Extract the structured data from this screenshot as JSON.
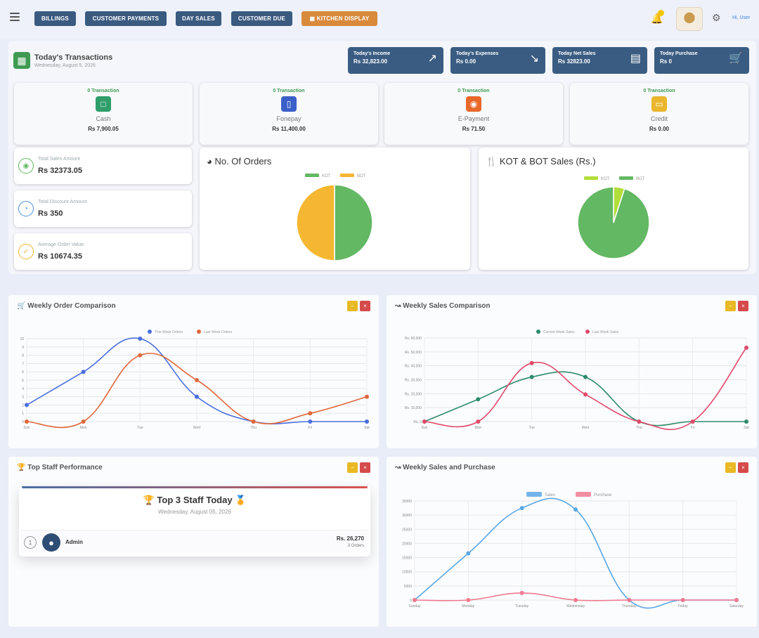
{
  "nav": {
    "buttons": [
      "BILLINGS",
      "CUSTOMER PAYMENTS",
      "DAY SALES",
      "CUSTOMER DUE",
      "KITCHEN DISPLAY"
    ],
    "user_label": "Hi, User"
  },
  "transactions": {
    "title": "Today's Transactions",
    "date": "Wednesday, August 5, 2026"
  },
  "summary_cards": [
    {
      "label": "Today's Income",
      "value": "Rs 32,823.00",
      "icon": "trend-up-icon"
    },
    {
      "label": "Today's Expenses",
      "value": "Rs 0.00",
      "icon": "trend-down-icon"
    },
    {
      "label": "Today Net Sales",
      "value": "Rs 32823.00",
      "icon": "receipt-icon"
    },
    {
      "label": "Today Purchase",
      "value": "Rs 0",
      "icon": "cart-icon"
    }
  ],
  "payment_methods": [
    {
      "tx": "0 Transaction",
      "name": "Cash",
      "amount": "Rs 7,900.05",
      "color": "#2f9e6a",
      "icon": "cash-icon"
    },
    {
      "tx": "0 Transaction",
      "name": "Fonepay",
      "amount": "Rs 11,400.00",
      "color": "#3a5fc8",
      "icon": "phone-icon"
    },
    {
      "tx": "0 Transaction",
      "name": "E-Payment",
      "amount": "Rs 71.50",
      "color": "#e8682a",
      "icon": "epay-icon"
    },
    {
      "tx": "0 Transaction",
      "name": "Credit",
      "amount": "Rs 0.00",
      "color": "#e9b62e",
      "icon": "credit-icon"
    }
  ],
  "stats": [
    {
      "label": "Total Sales Amount",
      "value": "Rs 32373.05",
      "color": "#5cb85c",
      "icon": "sales-icon"
    },
    {
      "label": "Total Discount Amount",
      "value": "Rs 350",
      "color": "#4a90d9",
      "icon": "discount-icon"
    },
    {
      "label": "Average Order Value",
      "value": "Rs 10674.35",
      "color": "#e9b62e",
      "icon": "average-icon"
    }
  ],
  "orders_pie": {
    "title": "No. Of Orders",
    "legend": [
      "KOT",
      "BOT"
    ],
    "values": [
      50,
      50
    ],
    "colors": [
      "#63b863",
      "#f5b731"
    ]
  },
  "kotbot_pie": {
    "title": "KOT & BOT Sales (Rs.)",
    "legend": [
      "KOT",
      "BOT"
    ],
    "values": [
      5,
      95
    ],
    "colors": [
      "#b3dd3a",
      "#63b863"
    ]
  },
  "weekly_orders": {
    "title": "Weekly Order Comparison",
    "legend": [
      "This Week Orders",
      "Last Week Orders"
    ],
    "colors": [
      "#4a6fe0",
      "#e0683a"
    ],
    "days": [
      "Sun",
      "Mon",
      "Tue",
      "Wed",
      "Thu",
      "Fri",
      "Sat"
    ],
    "y_ticks": [
      "0",
      "1",
      "2",
      "3",
      "4",
      "5",
      "6",
      "7",
      "8",
      "9",
      "10"
    ],
    "this_week": [
      2,
      6,
      10,
      3,
      0,
      0,
      0
    ],
    "last_week": [
      0,
      0,
      8,
      5,
      0,
      1,
      3
    ]
  },
  "weekly_sales": {
    "title": "Weekly Sales Comparison",
    "legend": [
      "Current Week Sales",
      "Last Week Sales"
    ],
    "colors": [
      "#2e8b6a",
      "#e04a6a"
    ],
    "days": [
      "Sun",
      "Mon",
      "Tue",
      "Wed",
      "Thu",
      "Fri",
      "Sat"
    ],
    "y_ticks": [
      "Rs. 0",
      "Rs. 10,000",
      "Rs. 20,000",
      "Rs. 30,000",
      "Rs. 40,000",
      "Rs. 50,000",
      "Rs. 60,000"
    ],
    "current": [
      0,
      16000,
      32000,
      32000,
      0,
      0,
      0
    ],
    "last": [
      0,
      0,
      42000,
      19500,
      0,
      0,
      53000
    ]
  },
  "staff": {
    "title": "Top Staff Performance",
    "heading": "Top 3 Staff Today",
    "date": "Wednesday, August 05, 2026",
    "rank": "1",
    "name": "Admin",
    "amount": "Rs. 26,270",
    "orders": "3 Orders"
  },
  "sales_purchase": {
    "title": "Weekly Sales and Purchase",
    "legend": [
      "Sales",
      "Purchase"
    ],
    "colors": [
      "#5aa7e6",
      "#f07a90"
    ],
    "days": [
      "Sunday",
      "Monday",
      "Tuesday",
      "Wednesday",
      "Thursday",
      "Friday",
      "Saturday"
    ],
    "y_ticks": [
      "0",
      "5000",
      "10000",
      "15000",
      "20000",
      "25000",
      "30000",
      "35000"
    ],
    "sales": [
      0,
      16500,
      32500,
      32000,
      0,
      0,
      0
    ],
    "purchase": [
      0,
      0,
      2500,
      0,
      0,
      0,
      0
    ]
  }
}
